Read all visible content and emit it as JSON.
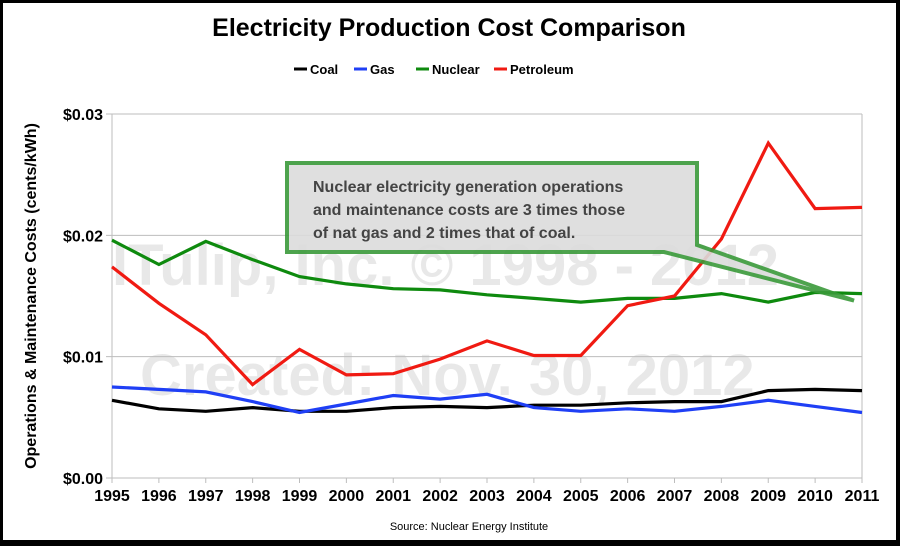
{
  "chart_data": {
    "type": "line",
    "title": "Electricity Production Cost Comparison",
    "xlabel": "",
    "ylabel": "Operations & Maintenance Costs (cents/kWh)",
    "ylim": [
      0,
      0.03
    ],
    "yticks": [
      {
        "value": 0.0,
        "label": "$0.00"
      },
      {
        "value": 0.01,
        "label": "$0.01"
      },
      {
        "value": 0.02,
        "label": "$0.02"
      },
      {
        "value": 0.03,
        "label": "$0.03"
      }
    ],
    "grid": true,
    "legend_position": "top-center",
    "x": [
      "1995",
      "1996",
      "1997",
      "1998",
      "1999",
      "2000",
      "2001",
      "2002",
      "2003",
      "2004",
      "2005",
      "2006",
      "2007",
      "2008",
      "2009",
      "2010",
      "2011"
    ],
    "series": [
      {
        "name": "Coal",
        "color": "#000000",
        "values": [
          0.0064,
          0.0057,
          0.0055,
          0.0058,
          0.0055,
          0.0055,
          0.0058,
          0.0059,
          0.0058,
          0.006,
          0.006,
          0.0062,
          0.0063,
          0.0063,
          0.0072,
          0.0073,
          0.0072
        ]
      },
      {
        "name": "Gas",
        "color": "#1f3ff5",
        "values": [
          0.0075,
          0.0073,
          0.0071,
          0.0063,
          0.0054,
          0.0061,
          0.0068,
          0.0065,
          0.0069,
          0.0058,
          0.0055,
          0.0057,
          0.0055,
          0.0059,
          0.0064,
          0.0059,
          0.0054
        ]
      },
      {
        "name": "Nuclear",
        "color": "#0e8a0e",
        "values": [
          0.0196,
          0.0176,
          0.0195,
          0.018,
          0.0166,
          0.016,
          0.0156,
          0.0155,
          0.0151,
          0.0148,
          0.0145,
          0.0148,
          0.0148,
          0.0152,
          0.0145,
          0.0153,
          0.0152
        ]
      },
      {
        "name": "Petroleum",
        "color": "#f01a12",
        "values": [
          0.0174,
          0.0144,
          0.0118,
          0.0077,
          0.0106,
          0.0085,
          0.0086,
          0.0098,
          0.0113,
          0.0101,
          0.0101,
          0.0142,
          0.015,
          0.0197,
          0.0276,
          0.0222,
          0.0223
        ]
      }
    ],
    "annotation": {
      "lines": [
        "Nuclear electricity generation operations",
        "and maintenance costs are 3 times those",
        "of nat gas and 2 times that of coal."
      ],
      "points_to": {
        "series": "Nuclear",
        "x": "2011"
      },
      "border_color": "#3a9a3a",
      "fill_color": "#dcdcdc"
    },
    "watermarks": [
      "ITulip, Inc. © 1998 - 2012",
      "Created: Nov. 30, 2012"
    ],
    "source": "Source: Nuclear Energy Institute"
  }
}
